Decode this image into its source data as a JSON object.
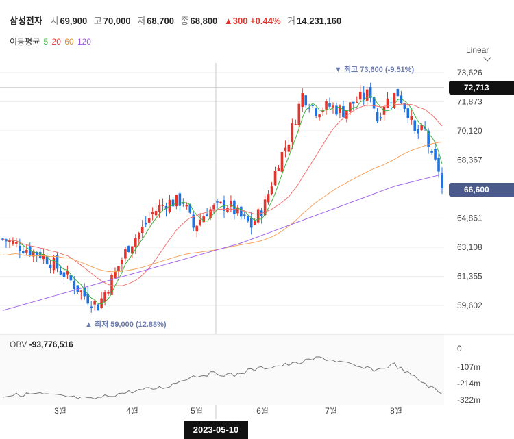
{
  "header": {
    "name": "삼성전자",
    "open_label": "시",
    "open": "69,900",
    "high_label": "고",
    "high": "70,000",
    "low_label": "저",
    "low": "68,700",
    "close_label": "종",
    "close": "68,800",
    "change": "▲300",
    "change_pct": "+0.44%",
    "volume_label": "거",
    "volume": "14,231,160"
  },
  "ma_legend": {
    "label": "이동평균",
    "p5": "5",
    "p20": "20",
    "p60": "60",
    "p120": "120"
  },
  "scale_selector": {
    "label": "Linear",
    "icon": "chevron-down-icon"
  },
  "colors": {
    "up": "#e2352e",
    "down": "#1f73e0",
    "ma5": "#3cb43c",
    "ma20": "#f07070",
    "ma60": "#f4a460",
    "ma120": "#a066e8",
    "last_price_tag": "#4a5a8a",
    "crosshair_tag": "#111111"
  },
  "price_tags": {
    "crosshair": "72,713",
    "last": "66,600"
  },
  "annotations": {
    "high": "▼ 최고 73,600 (-9.51%)",
    "low": "▲ 최저 59,000 (12.88%)"
  },
  "crosshair_date": "2023-05-10",
  "obv": {
    "label": "OBV",
    "value": "-93,776,516",
    "ticks": [
      "0",
      "-107m",
      "-214m",
      "-322m"
    ]
  },
  "chart_data": {
    "type": "candlestick",
    "price_ticks": [
      73626,
      71873,
      70120,
      68367,
      66614,
      64861,
      63108,
      61355,
      59602
    ],
    "price_tick_labels": [
      "73,626",
      "71,873",
      "70,120",
      "68,367",
      "64,861",
      "63,108",
      "61,355",
      "59,602"
    ],
    "month_labels": [
      "3월",
      "4월",
      "5월",
      "6월",
      "7월",
      "8월"
    ],
    "high": 73600,
    "low": 59000,
    "last": 66600
  }
}
